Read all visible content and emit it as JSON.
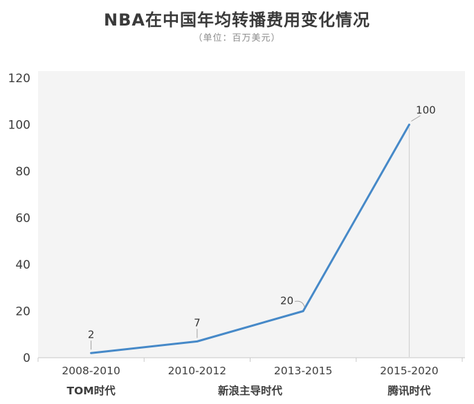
{
  "chart_data": {
    "type": "line",
    "title": "NBA在中国年均转播费用变化情况",
    "subtitle": "（单位：百万美元）",
    "unit": "百万美元",
    "categories": [
      "2008-2010",
      "2010-2012",
      "2013-2015",
      "2015-2020"
    ],
    "values": [
      2,
      7,
      20,
      100
    ],
    "data_labels": [
      "2",
      "7",
      "20",
      "100"
    ],
    "era_labels": [
      {
        "label": "TOM时代",
        "position": 0
      },
      {
        "label": "新浪主导时代",
        "position": 1.5
      },
      {
        "label": "腾讯时代",
        "position": 3
      }
    ],
    "xlabel": "",
    "ylabel": "",
    "ylim": [
      0,
      120
    ],
    "yticks": [
      0,
      20,
      40,
      60,
      80,
      100,
      120
    ],
    "grid": false,
    "legend": "none",
    "colors": {
      "line": "#4689c8",
      "plot_background": "#f4f4f4",
      "axis": "#c9c9c9",
      "text": "#3d3d3d",
      "data_label": "#333333",
      "leader": "#a0a0a0",
      "drop_line": "#cccccc"
    }
  }
}
